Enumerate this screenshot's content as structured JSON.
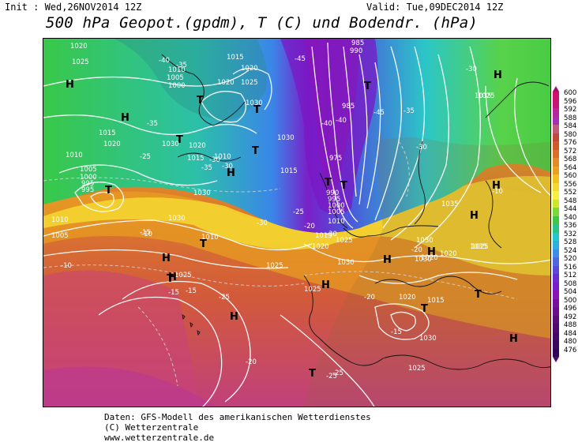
{
  "header": {
    "init": "Init : Wed,26NOV2014 12Z",
    "valid": "Valid: Tue,09DEC2014 12Z",
    "title": "500 hPa Geopot.(gpdm), T (C) und Bodendr. (hPa)"
  },
  "scale": {
    "values": [
      "600",
      "596",
      "592",
      "588",
      "584",
      "580",
      "576",
      "572",
      "568",
      "564",
      "560",
      "556",
      "552",
      "548",
      "544",
      "540",
      "536",
      "532",
      "528",
      "524",
      "520",
      "516",
      "512",
      "508",
      "504",
      "500",
      "496",
      "492",
      "488",
      "484",
      "480",
      "476"
    ],
    "colors": [
      "#d0106e",
      "#c8147a",
      "#b8249a",
      "#a42fb3",
      "#c05a7a",
      "#c04a3a",
      "#d05a2a",
      "#d8702a",
      "#e08a2a",
      "#e8a020",
      "#f0c020",
      "#f4d830",
      "#f8f040",
      "#c8e828",
      "#7cd83a",
      "#44c444",
      "#2cc48a",
      "#24c8c8",
      "#2cb0e0",
      "#3c8ce8",
      "#5066e0",
      "#5c48d8",
      "#6a2cd0",
      "#7a1cc8",
      "#8a14b8",
      "#7a10a0",
      "#6a0e8a",
      "#5a0c7a",
      "#4e0a6e",
      "#440866",
      "#3a0660",
      "#300558"
    ]
  },
  "map": {
    "pressure_labels": [
      {
        "t": "1020"
      },
      {
        "t": "1025"
      },
      {
        "t": "1010"
      },
      {
        "t": "1005"
      },
      {
        "t": "1000"
      },
      {
        "t": "1015"
      },
      {
        "t": "1020"
      },
      {
        "t": "1025"
      },
      {
        "t": "1030"
      },
      {
        "t": "1020"
      },
      {
        "t": "1015"
      },
      {
        "t": "1010"
      },
      {
        "t": "1015"
      },
      {
        "t": "1010"
      },
      {
        "t": "1005"
      },
      {
        "t": "1000"
      },
      {
        "t": "995"
      },
      {
        "t": "995"
      },
      {
        "t": "990"
      },
      {
        "t": "985"
      },
      {
        "t": "985"
      },
      {
        "t": "975"
      },
      {
        "t": "990"
      },
      {
        "t": "995"
      },
      {
        "t": "1000"
      },
      {
        "t": "1005"
      },
      {
        "t": "1010"
      },
      {
        "t": "1015"
      },
      {
        "t": "1020"
      },
      {
        "t": "1025"
      },
      {
        "t": "1030"
      },
      {
        "t": "1030"
      },
      {
        "t": "1020"
      },
      {
        "t": "1015"
      },
      {
        "t": "1030"
      },
      {
        "t": "1035"
      },
      {
        "t": "1025"
      },
      {
        "t": "1030"
      },
      {
        "t": "1035"
      },
      {
        "t": "1030"
      },
      {
        "t": "1025"
      },
      {
        "t": "1010"
      },
      {
        "t": "1005"
      },
      {
        "t": "1025"
      },
      {
        "t": "1030"
      },
      {
        "t": "1025"
      },
      {
        "t": "1025"
      },
      {
        "t": "1020"
      },
      {
        "t": "1030"
      },
      {
        "t": "1020"
      },
      {
        "t": "1015"
      },
      {
        "t": "1030"
      },
      {
        "t": "1020"
      },
      {
        "t": "1025"
      },
      {
        "t": "1035"
      },
      {
        "t": "1020"
      },
      {
        "t": "1010"
      }
    ],
    "temp_labels": [
      "-40",
      "-35",
      "-35",
      "-45",
      "-40",
      "-40",
      "-45",
      "-30",
      "-30",
      "-35",
      "-30",
      "-30",
      "-25",
      "-25",
      "-20",
      "-25",
      "-20",
      "-15",
      "-10",
      "-15",
      "-10",
      "-15",
      "-20",
      "-30",
      "-30",
      "-35",
      "-20",
      "-15",
      "-10",
      "-25",
      "-25"
    ],
    "highs": [
      "H",
      "H",
      "H",
      "H",
      "H",
      "H",
      "H",
      "H",
      "H",
      "H",
      "H",
      "H",
      "H"
    ],
    "lows": [
      "T",
      "T",
      "T",
      "T",
      "T",
      "T",
      "T",
      "T",
      "T",
      "T",
      "T",
      "T",
      "T"
    ]
  },
  "footer": {
    "line1": "Daten: GFS-Modell des amerikanischen Wetterdienstes",
    "line2": "(C) Wetterzentrale",
    "line3": "www.wetterzentrale.de"
  }
}
